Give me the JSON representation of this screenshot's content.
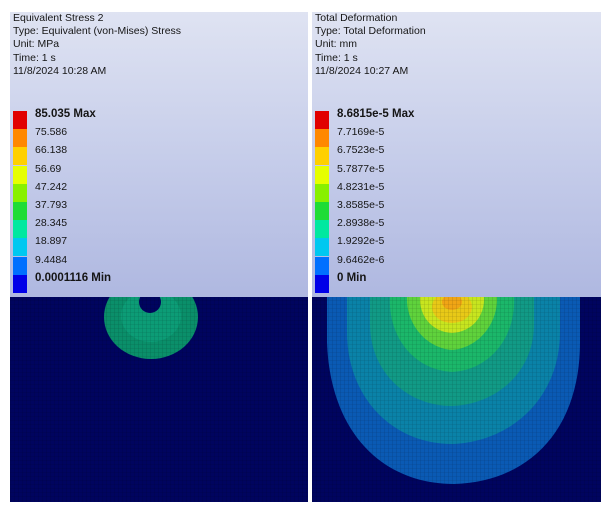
{
  "left": {
    "title": "Equivalent Stress 2",
    "type": "Type: Equivalent (von-Mises) Stress",
    "unit": "Unit: MPa",
    "time": "Time: 1 s",
    "date": "11/8/2024 10:28 AM",
    "legend": [
      {
        "label": "85.035 Max",
        "color": "#e10000",
        "bold": true
      },
      {
        "label": "75.586",
        "color": "#ff8800"
      },
      {
        "label": "66.138",
        "color": "#ffd000"
      },
      {
        "label": "56.69",
        "color": "#e6ff00"
      },
      {
        "label": "47.242",
        "color": "#88f000"
      },
      {
        "label": "37.793",
        "color": "#1edc36"
      },
      {
        "label": "28.345",
        "color": "#00e8a0"
      },
      {
        "label": "18.897",
        "color": "#00c8f0"
      },
      {
        "label": "9.4484",
        "color": "#0070ff"
      },
      {
        "label": "0.0001116 Min",
        "color": "#0000e8",
        "bold": true
      }
    ]
  },
  "right": {
    "title": "Total Deformation",
    "type": "Type: Total Deformation",
    "unit": "Unit: mm",
    "time": "Time: 1 s",
    "date": "11/8/2024 10:27 AM",
    "legend": [
      {
        "label": "8.6815e-5 Max",
        "color": "#e10000",
        "bold": true
      },
      {
        "label": "7.7169e-5",
        "color": "#ff8800"
      },
      {
        "label": "6.7523e-5",
        "color": "#ffd000"
      },
      {
        "label": "5.7877e-5",
        "color": "#e6ff00"
      },
      {
        "label": "4.8231e-5",
        "color": "#88f000"
      },
      {
        "label": "3.8585e-5",
        "color": "#1edc36"
      },
      {
        "label": "2.8938e-5",
        "color": "#00e8a0"
      },
      {
        "label": "1.9292e-5",
        "color": "#00c8f0"
      },
      {
        "label": "9.6462e-6",
        "color": "#0070ff"
      },
      {
        "label": "0 Min",
        "color": "#0000e8",
        "bold": true
      }
    ]
  }
}
